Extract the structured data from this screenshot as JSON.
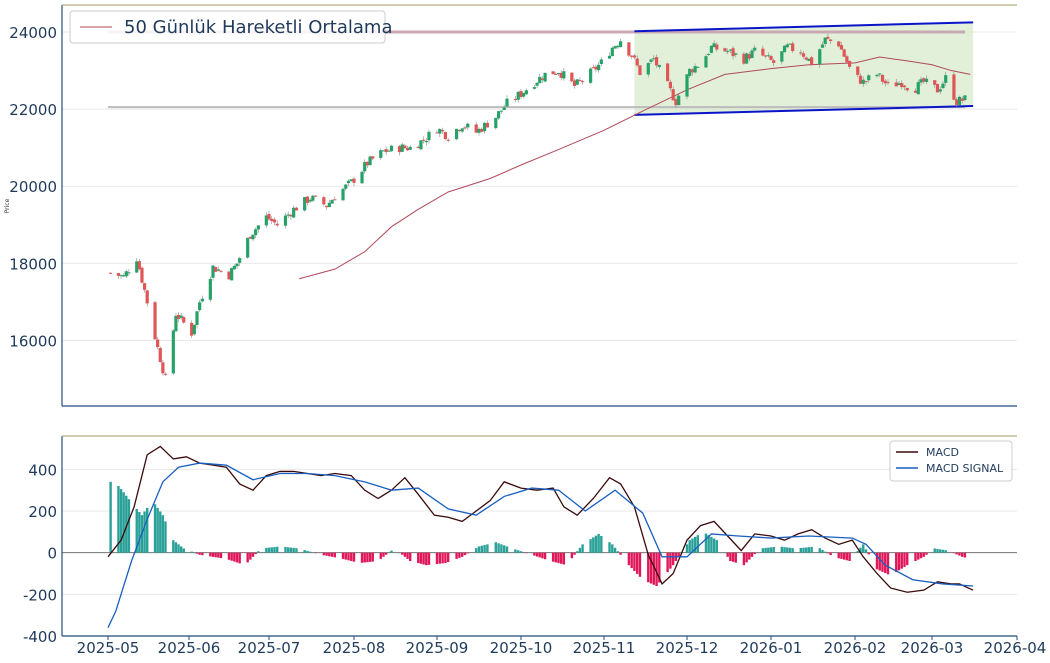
{
  "colors": {
    "axis": "#1f4e79",
    "tick_text": "#1f3a5a",
    "grid": "#e8e8e8",
    "top_rule": "#b7ad83",
    "up": "#26a269",
    "down": "#e05555",
    "ma": "#b04a5a",
    "channel": "#0a14c8",
    "channel_fill": "#cfe6c0",
    "hline": "#bcbcbc",
    "hline_top": "#c9a8b4",
    "macd": "#3a0a0a",
    "signal": "#1a5fc0",
    "hist_pos": "#2aa198",
    "hist_neg": "#e0185a"
  },
  "chart_data": [
    {
      "type": "candlestick",
      "ylabel": "Price",
      "ylim": [
        14300,
        24700
      ],
      "yticks": [
        16000,
        18000,
        20000,
        22000,
        24000
      ],
      "xticks": [
        "2025-05",
        "2025-06",
        "2025-07",
        "2025-08",
        "2025-09",
        "2025-10",
        "2025-11",
        "2025-12",
        "2026-01",
        "2026-02",
        "2026-03",
        "2026-04"
      ],
      "legend": "50 Günlük Hareketli Ortalama",
      "legend_position": "top-left",
      "horizontal_lines": [
        22050,
        24000
      ],
      "channel": {
        "upper": [
          {
            "x": "2025-11-12",
            "y": 24020
          },
          {
            "x": "2026-03-16",
            "y": 24250
          }
        ],
        "lower": [
          {
            "x": "2025-11-12",
            "y": 21850
          },
          {
            "x": "2026-03-16",
            "y": 22080
          }
        ]
      },
      "close_anchors": [
        [
          "2025-05-02",
          17750
        ],
        [
          "2025-05-07",
          17650
        ],
        [
          "2025-05-12",
          18150
        ],
        [
          "2025-05-15",
          17300
        ],
        [
          "2025-05-20",
          15800
        ],
        [
          "2025-05-23",
          15000
        ],
        [
          "2025-05-27",
          16700
        ],
        [
          "2025-06-02",
          16200
        ],
        [
          "2025-06-05",
          17000
        ],
        [
          "2025-06-10",
          17900
        ],
        [
          "2025-06-16",
          17700
        ],
        [
          "2025-06-19",
          18000
        ],
        [
          "2025-06-24",
          18750
        ],
        [
          "2025-06-30",
          19200
        ],
        [
          "2025-07-04",
          19000
        ],
        [
          "2025-07-10",
          19400
        ],
        [
          "2025-07-16",
          19700
        ],
        [
          "2025-07-22",
          19500
        ],
        [
          "2025-07-25",
          19750
        ],
        [
          "2025-07-31",
          20100
        ],
        [
          "2025-08-06",
          20600
        ],
        [
          "2025-08-12",
          20900
        ],
        [
          "2025-08-18",
          21000
        ],
        [
          "2025-08-22",
          21000
        ],
        [
          "2025-08-27",
          21200
        ],
        [
          "2025-09-01",
          21500
        ],
        [
          "2025-09-05",
          21300
        ],
        [
          "2025-09-10",
          21600
        ],
        [
          "2025-09-15",
          21400
        ],
        [
          "2025-09-22",
          21800
        ],
        [
          "2025-09-26",
          22150
        ],
        [
          "2025-10-01",
          22400
        ],
        [
          "2025-10-06",
          22700
        ],
        [
          "2025-10-10",
          22900
        ],
        [
          "2025-10-15",
          23000
        ],
        [
          "2025-10-21",
          22600
        ],
        [
          "2025-10-25",
          22800
        ],
        [
          "2025-10-31",
          23200
        ],
        [
          "2025-11-04",
          23600
        ],
        [
          "2025-11-07",
          23800
        ],
        [
          "2025-11-11",
          23400
        ],
        [
          "2025-11-14",
          22950
        ],
        [
          "2025-11-19",
          23300
        ],
        [
          "2025-11-24",
          22600
        ],
        [
          "2025-11-27",
          22200
        ],
        [
          "2025-12-02",
          23000
        ],
        [
          "2025-12-06",
          23200
        ],
        [
          "2025-12-10",
          23600
        ],
        [
          "2025-12-16",
          23500
        ],
        [
          "2025-12-22",
          23300
        ],
        [
          "2025-12-26",
          23500
        ],
        [
          "2026-01-02",
          23200
        ],
        [
          "2026-01-07",
          23600
        ],
        [
          "2026-01-12",
          23500
        ],
        [
          "2026-01-16",
          23200
        ],
        [
          "2026-01-21",
          23800
        ],
        [
          "2026-01-26",
          23700
        ],
        [
          "2026-01-31",
          22900
        ],
        [
          "2026-02-04",
          22700
        ],
        [
          "2026-02-09",
          22900
        ],
        [
          "2026-02-13",
          22600
        ],
        [
          "2026-02-18",
          22700
        ],
        [
          "2026-02-22",
          22500
        ],
        [
          "2026-02-26",
          22700
        ],
        [
          "2026-03-03",
          22500
        ],
        [
          "2026-03-06",
          22800
        ],
        [
          "2026-03-10",
          22200
        ],
        [
          "2026-03-13",
          22250
        ]
      ],
      "moving_average": [
        [
          "2025-07-12",
          17600
        ],
        [
          "2025-07-25",
          17850
        ],
        [
          "2025-08-05",
          18300
        ],
        [
          "2025-08-15",
          18950
        ],
        [
          "2025-08-25",
          19400
        ],
        [
          "2025-09-05",
          19850
        ],
        [
          "2025-09-20",
          20200
        ],
        [
          "2025-10-01",
          20550
        ],
        [
          "2025-10-15",
          20950
        ],
        [
          "2025-11-01",
          21450
        ],
        [
          "2025-11-15",
          21950
        ],
        [
          "2025-12-01",
          22500
        ],
        [
          "2025-12-15",
          22900
        ],
        [
          "2026-01-01",
          23050
        ],
        [
          "2026-01-15",
          23150
        ],
        [
          "2026-02-01",
          23200
        ],
        [
          "2026-02-10",
          23350
        ],
        [
          "2026-02-20",
          23250
        ],
        [
          "2026-03-01",
          23150
        ],
        [
          "2026-03-08",
          23000
        ],
        [
          "2026-03-15",
          22900
        ]
      ]
    },
    {
      "type": "line+bar",
      "ylim": [
        -400,
        560
      ],
      "yticks": [
        -400,
        -200,
        0,
        200,
        400
      ],
      "legend_position": "top-right",
      "series": [
        {
          "name": "MACD",
          "values": [
            [
              "2025-05-01",
              -20
            ],
            [
              "2025-05-06",
              60
            ],
            [
              "2025-05-11",
              220
            ],
            [
              "2025-05-16",
              470
            ],
            [
              "2025-05-21",
              510
            ],
            [
              "2025-05-26",
              450
            ],
            [
              "2025-05-31",
              460
            ],
            [
              "2025-06-05",
              430
            ],
            [
              "2025-06-10",
              420
            ],
            [
              "2025-06-15",
              410
            ],
            [
              "2025-06-20",
              330
            ],
            [
              "2025-06-25",
              300
            ],
            [
              "2025-06-30",
              370
            ],
            [
              "2025-07-05",
              390
            ],
            [
              "2025-07-10",
              390
            ],
            [
              "2025-07-15",
              380
            ],
            [
              "2025-07-20",
              370
            ],
            [
              "2025-07-25",
              380
            ],
            [
              "2025-07-31",
              370
            ],
            [
              "2025-08-05",
              300
            ],
            [
              "2025-08-10",
              260
            ],
            [
              "2025-08-15",
              300
            ],
            [
              "2025-08-20",
              360
            ],
            [
              "2025-08-25",
              280
            ],
            [
              "2025-08-31",
              180
            ],
            [
              "2025-09-05",
              170
            ],
            [
              "2025-09-10",
              150
            ],
            [
              "2025-09-15",
              200
            ],
            [
              "2025-09-20",
              250
            ],
            [
              "2025-09-25",
              340
            ],
            [
              "2025-10-01",
              310
            ],
            [
              "2025-10-07",
              300
            ],
            [
              "2025-10-13",
              310
            ],
            [
              "2025-10-17",
              220
            ],
            [
              "2025-10-22",
              180
            ],
            [
              "2025-10-28",
              260
            ],
            [
              "2025-11-03",
              360
            ],
            [
              "2025-11-07",
              330
            ],
            [
              "2025-11-12",
              220
            ],
            [
              "2025-11-17",
              -10
            ],
            [
              "2025-11-22",
              -150
            ],
            [
              "2025-11-26",
              -100
            ],
            [
              "2025-12-01",
              60
            ],
            [
              "2025-12-06",
              130
            ],
            [
              "2025-12-11",
              150
            ],
            [
              "2025-12-16",
              80
            ],
            [
              "2025-12-21",
              10
            ],
            [
              "2025-12-26",
              90
            ],
            [
              "2026-01-01",
              80
            ],
            [
              "2026-01-06",
              60
            ],
            [
              "2026-01-11",
              90
            ],
            [
              "2026-01-16",
              110
            ],
            [
              "2026-01-21",
              70
            ],
            [
              "2026-01-26",
              40
            ],
            [
              "2026-01-31",
              60
            ],
            [
              "2026-02-04",
              -20
            ],
            [
              "2026-02-09",
              -100
            ],
            [
              "2026-02-14",
              -170
            ],
            [
              "2026-02-20",
              -190
            ],
            [
              "2026-02-26",
              -180
            ],
            [
              "2026-03-03",
              -140
            ],
            [
              "2026-03-08",
              -150
            ],
            [
              "2026-03-11",
              -150
            ],
            [
              "2026-03-16",
              -180
            ]
          ]
        },
        {
          "name": "MACD SIGNAL",
          "values": [
            [
              "2025-05-01",
              -360
            ],
            [
              "2025-05-04",
              -280
            ],
            [
              "2025-05-10",
              -40
            ],
            [
              "2025-05-16",
              160
            ],
            [
              "2025-05-22",
              340
            ],
            [
              "2025-05-28",
              410
            ],
            [
              "2025-06-05",
              430
            ],
            [
              "2025-06-15",
              420
            ],
            [
              "2025-06-25",
              350
            ],
            [
              "2025-07-05",
              380
            ],
            [
              "2025-07-15",
              380
            ],
            [
              "2025-07-25",
              370
            ],
            [
              "2025-08-05",
              340
            ],
            [
              "2025-08-15",
              300
            ],
            [
              "2025-08-25",
              310
            ],
            [
              "2025-09-05",
              210
            ],
            [
              "2025-09-15",
              180
            ],
            [
              "2025-09-25",
              270
            ],
            [
              "2025-10-05",
              310
            ],
            [
              "2025-10-15",
              300
            ],
            [
              "2025-10-25",
              200
            ],
            [
              "2025-11-05",
              300
            ],
            [
              "2025-11-15",
              190
            ],
            [
              "2025-11-22",
              -20
            ],
            [
              "2025-12-01",
              -20
            ],
            [
              "2025-12-10",
              90
            ],
            [
              "2025-12-20",
              80
            ],
            [
              "2026-01-01",
              70
            ],
            [
              "2026-01-15",
              80
            ],
            [
              "2026-01-31",
              70
            ],
            [
              "2026-02-05",
              40
            ],
            [
              "2026-02-12",
              -60
            ],
            [
              "2026-02-22",
              -130
            ],
            [
              "2026-03-05",
              -150
            ],
            [
              "2026-03-16",
              -160
            ]
          ]
        },
        {
          "name": "Histogram",
          "values": [
            [
              "2025-05-02",
              340
            ],
            [
              "2025-05-05",
              320
            ],
            [
              "2025-05-07",
              290
            ],
            [
              "2025-05-10",
              240
            ],
            [
              "2025-05-14",
              180
            ],
            [
              "2025-05-18",
              250
            ],
            [
              "2025-05-22",
              180
            ],
            [
              "2025-05-26",
              60
            ],
            [
              "2025-05-30",
              20
            ],
            [
              "2025-06-05",
              -10
            ],
            [
              "2025-06-15",
              -30
            ],
            [
              "2025-06-22",
              -60
            ],
            [
              "2025-06-28",
              20
            ],
            [
              "2025-07-05",
              30
            ],
            [
              "2025-07-12",
              20
            ],
            [
              "2025-07-20",
              -10
            ],
            [
              "2025-07-28",
              -30
            ],
            [
              "2025-08-03",
              -50
            ],
            [
              "2025-08-10",
              -40
            ],
            [
              "2025-08-16",
              20
            ],
            [
              "2025-08-22",
              -40
            ],
            [
              "2025-08-28",
              -60
            ],
            [
              "2025-09-04",
              -50
            ],
            [
              "2025-09-10",
              -20
            ],
            [
              "2025-09-16",
              30
            ],
            [
              "2025-09-22",
              50
            ],
            [
              "2025-09-28",
              20
            ],
            [
              "2025-10-05",
              -10
            ],
            [
              "2025-10-12",
              -40
            ],
            [
              "2025-10-18",
              -60
            ],
            [
              "2025-10-24",
              40
            ],
            [
              "2025-10-30",
              90
            ],
            [
              "2025-11-04",
              40
            ],
            [
              "2025-11-10",
              -60
            ],
            [
              "2025-11-15",
              -130
            ],
            [
              "2025-11-20",
              -160
            ],
            [
              "2025-11-26",
              -60
            ],
            [
              "2025-12-02",
              60
            ],
            [
              "2025-12-07",
              100
            ],
            [
              "2025-12-12",
              60
            ],
            [
              "2025-12-17",
              -40
            ],
            [
              "2025-12-22",
              -60
            ],
            [
              "2025-12-28",
              20
            ],
            [
              "2026-01-04",
              30
            ],
            [
              "2026-01-10",
              20
            ],
            [
              "2026-01-18",
              30
            ],
            [
              "2026-01-24",
              -20
            ],
            [
              "2026-01-30",
              -40
            ],
            [
              "2026-02-04",
              40
            ],
            [
              "2026-02-09",
              -80
            ],
            [
              "2026-02-14",
              -110
            ],
            [
              "2026-02-20",
              -60
            ],
            [
              "2026-02-26",
              -20
            ],
            [
              "2026-03-02",
              20
            ],
            [
              "2026-03-07",
              10
            ],
            [
              "2026-03-12",
              -20
            ],
            [
              "2026-03-15",
              -30
            ]
          ]
        }
      ]
    }
  ]
}
